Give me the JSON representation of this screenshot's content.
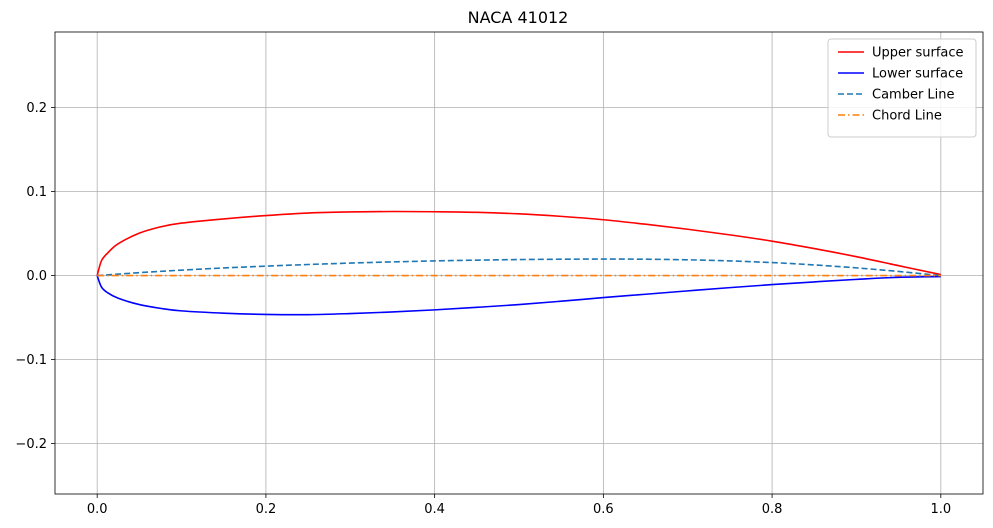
{
  "chart_data": {
    "type": "line",
    "title": "NACA 41012",
    "xlabel": "",
    "ylabel": "",
    "xlim": [
      -0.05,
      1.05
    ],
    "ylim": [
      -0.26,
      0.29
    ],
    "grid": true,
    "legend_position": "top-right",
    "x_ticks": [
      0.0,
      0.2,
      0.4,
      0.6,
      0.8,
      1.0
    ],
    "x_tick_labels": [
      "0.0",
      "0.2",
      "0.4",
      "0.6",
      "0.8",
      "1.0"
    ],
    "y_ticks": [
      -0.2,
      -0.1,
      0.0,
      0.1,
      0.2
    ],
    "y_tick_labels": [
      "−0.2",
      "−0.1",
      "0.0",
      "0.1",
      "0.2"
    ],
    "series": [
      {
        "name": "Upper surface",
        "color": "#ff0000",
        "style": "solid",
        "x": [
          0.0,
          0.005,
          0.0125,
          0.025,
          0.05,
          0.075,
          0.1,
          0.15,
          0.2,
          0.25,
          0.3,
          0.35,
          0.4,
          0.45,
          0.5,
          0.55,
          0.6,
          0.65,
          0.7,
          0.75,
          0.8,
          0.85,
          0.9,
          0.95,
          1.0
        ],
        "y": [
          0.0,
          0.0175,
          0.027,
          0.038,
          0.0505,
          0.058,
          0.0625,
          0.0675,
          0.0715,
          0.0745,
          0.0758,
          0.0763,
          0.076,
          0.0753,
          0.0735,
          0.0705,
          0.0665,
          0.0612,
          0.0552,
          0.0485,
          0.041,
          0.0322,
          0.0225,
          0.0118,
          0.0012
        ]
      },
      {
        "name": "Lower surface",
        "color": "#0000ff",
        "style": "solid",
        "x": [
          0.0,
          0.005,
          0.0125,
          0.025,
          0.05,
          0.075,
          0.1,
          0.15,
          0.2,
          0.25,
          0.3,
          0.35,
          0.4,
          0.45,
          0.5,
          0.55,
          0.6,
          0.65,
          0.7,
          0.75,
          0.8,
          0.85,
          0.9,
          0.95,
          1.0
        ],
        "y": [
          0.0,
          -0.0135,
          -0.0205,
          -0.027,
          -0.0345,
          -0.039,
          -0.042,
          -0.0447,
          -0.0462,
          -0.0465,
          -0.0452,
          -0.0433,
          -0.0408,
          -0.0378,
          -0.0345,
          -0.0305,
          -0.0262,
          -0.0222,
          -0.0182,
          -0.0143,
          -0.0107,
          -0.0075,
          -0.0045,
          -0.002,
          -0.0012
        ]
      },
      {
        "name": "Camber Line",
        "color": "#1f77b4",
        "style": "dashed",
        "x": [
          0.0,
          0.05,
          0.1,
          0.15,
          0.2,
          0.25,
          0.3,
          0.35,
          0.4,
          0.45,
          0.5,
          0.55,
          0.6,
          0.65,
          0.7,
          0.75,
          0.8,
          0.85,
          0.9,
          0.95,
          1.0
        ],
        "y": [
          0.0,
          0.0035,
          0.0065,
          0.0091,
          0.0113,
          0.0132,
          0.0149,
          0.0163,
          0.0175,
          0.0184,
          0.0191,
          0.0195,
          0.0197,
          0.0195,
          0.0188,
          0.0175,
          0.0155,
          0.0127,
          0.0092,
          0.0049,
          0.0
        ]
      },
      {
        "name": "Chord Line",
        "color": "#ff7f0e",
        "style": "dashdot",
        "x": [
          0.0,
          1.0
        ],
        "y": [
          0.0,
          0.0
        ]
      }
    ]
  }
}
